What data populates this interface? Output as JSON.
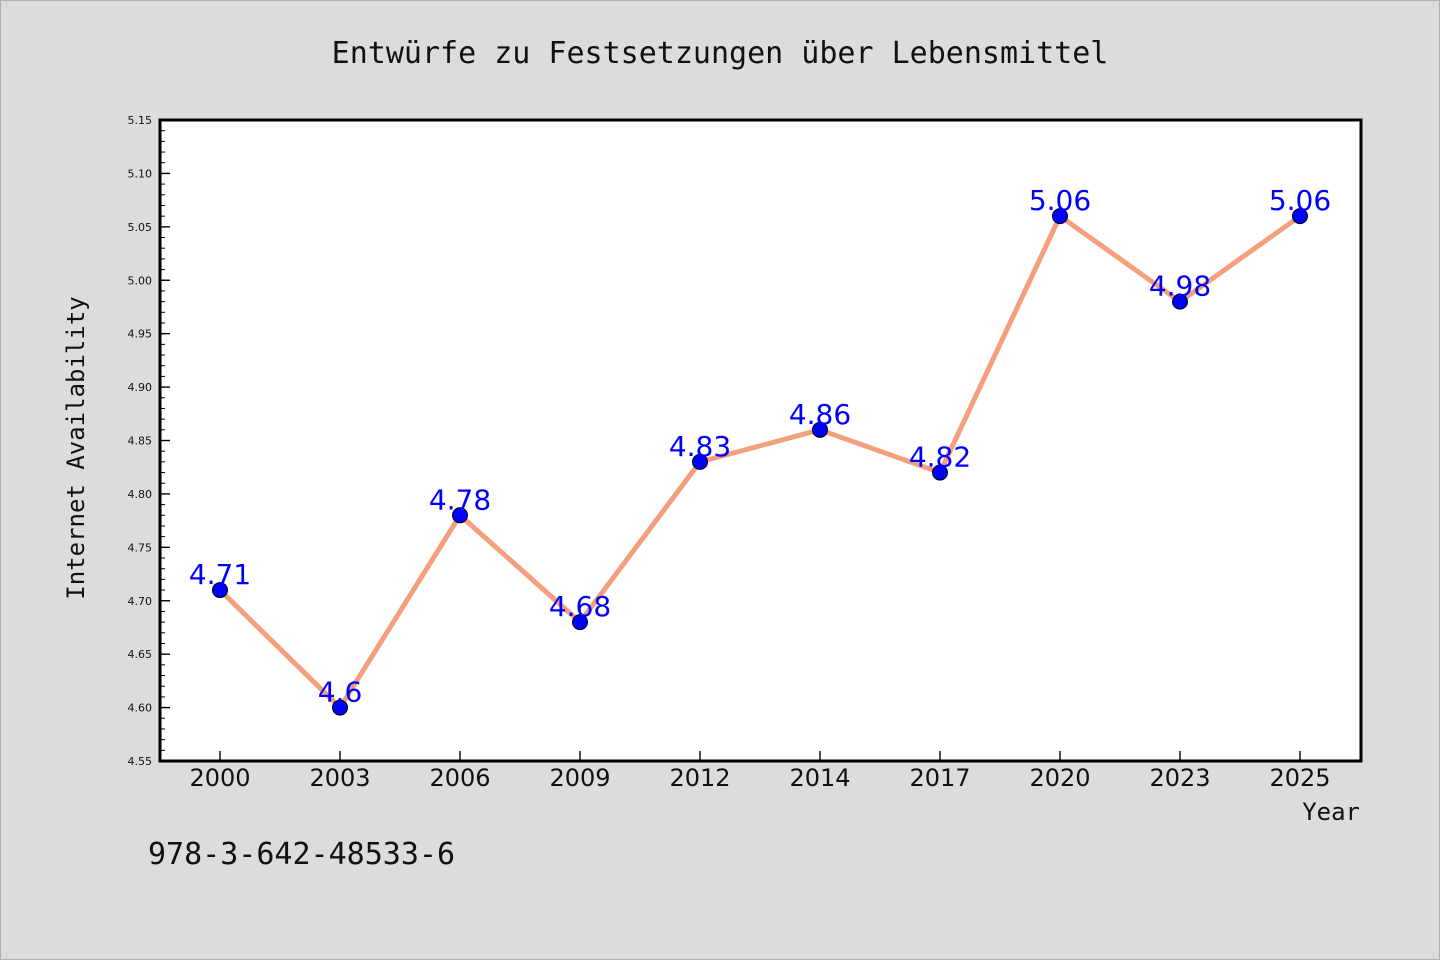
{
  "chart_data": {
    "type": "line",
    "title": "Entwürfe zu Festsetzungen über Lebensmittel",
    "xlabel": "Year",
    "ylabel": "Internet Availability",
    "categories": [
      "2000",
      "2003",
      "2006",
      "2009",
      "2012",
      "2014",
      "2017",
      "2020",
      "2023",
      "2025"
    ],
    "series": [
      {
        "values": [
          4.71,
          4.6,
          4.78,
          4.68,
          4.83,
          4.86,
          4.82,
          5.06,
          4.98,
          5.06
        ]
      }
    ],
    "data_labels": [
      "4.71",
      "4.6",
      "4.78",
      "4.68",
      "4.83",
      "4.86",
      "4.82",
      "5.06",
      "4.98",
      "5.06"
    ],
    "ylim": [
      4.55,
      5.15
    ],
    "yticks": [
      "4.55",
      "4.60",
      "4.65",
      "4.70",
      "4.75",
      "4.80",
      "4.85",
      "4.90",
      "4.95",
      "5.00",
      "5.05",
      "5.10",
      "5.15"
    ],
    "grid": false,
    "legend": false,
    "colors": {
      "line": "#f4a07e",
      "marker": "#0000ff",
      "label": "#0000ff",
      "background": "#dcdcdc",
      "plot_bg": "#ffffff"
    }
  },
  "footer": {
    "isbn": "978-3-642-48533-6"
  }
}
